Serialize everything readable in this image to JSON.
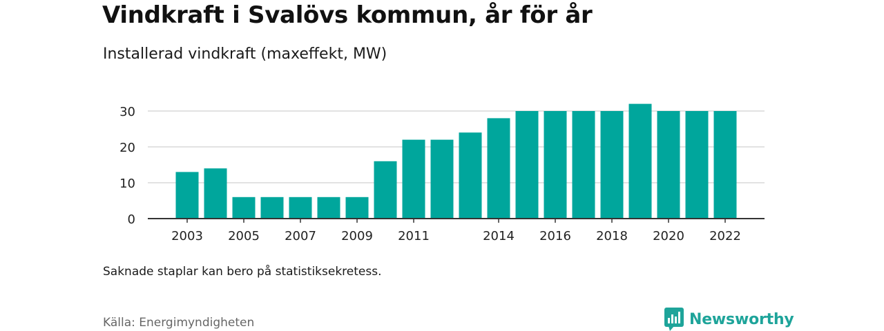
{
  "header": {
    "title": "Vindkraft i Svalövs kommun, år för år",
    "subtitle": "Installerad vindkraft (maxeffekt, MW)"
  },
  "footer": {
    "note": "Saknade staplar kan bero på statistiksekretess.",
    "source": "Källa: Energimyndigheten",
    "brand": "Newsworthy"
  },
  "colors": {
    "bar": "#00a69c",
    "brand": "#1ea49a",
    "grid": "#d9d9d9",
    "axis": "#333333"
  },
  "chart_data": {
    "type": "bar",
    "title": "Vindkraft i Svalövs kommun, år för år",
    "subtitle": "Installerad vindkraft (maxeffekt, MW)",
    "xlabel": "",
    "ylabel": "",
    "categories": [
      2003,
      2004,
      2005,
      2006,
      2007,
      2008,
      2009,
      2010,
      2011,
      2012,
      2013,
      2014,
      2015,
      2016,
      2017,
      2018,
      2019,
      2020,
      2021,
      2022
    ],
    "values": [
      13,
      14,
      6,
      6,
      6,
      6,
      6,
      16,
      22,
      22,
      24,
      28,
      30,
      30,
      30,
      30,
      32,
      30,
      30,
      30
    ],
    "x_tick_labels": [
      "2003",
      "2005",
      "2007",
      "2009",
      "2011",
      "2014",
      "2016",
      "2018",
      "2020",
      "2022"
    ],
    "y_ticks": [
      0,
      10,
      20,
      30
    ],
    "ylim": [
      0,
      32
    ],
    "grid": true,
    "legend": "none"
  }
}
